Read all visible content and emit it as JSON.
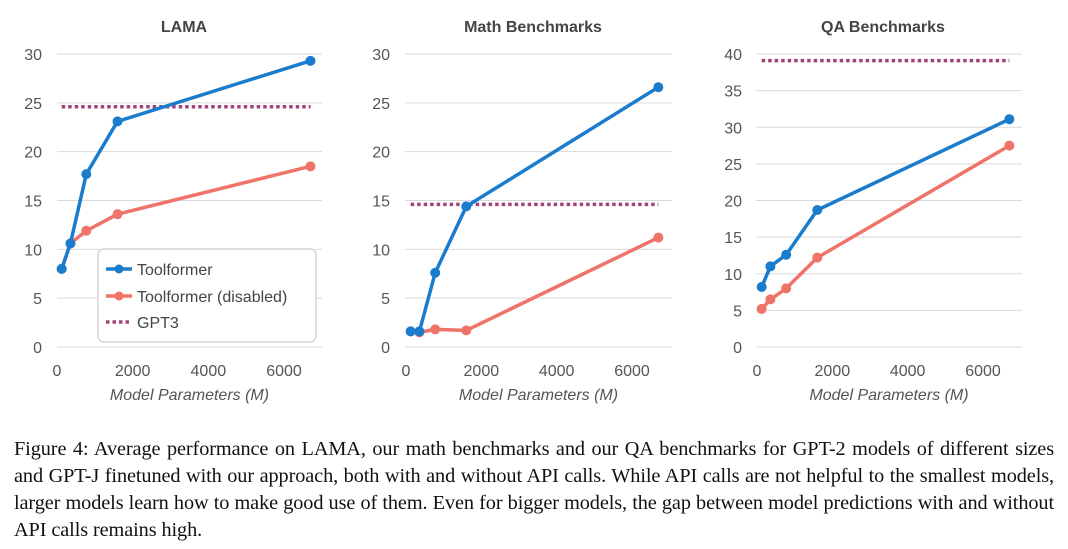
{
  "chart_data": [
    {
      "type": "line",
      "title": "LAMA",
      "xlabel": "Model Parameters (M)",
      "ylabel": "",
      "xlim": [
        0,
        7000
      ],
      "ylim": [
        0,
        30
      ],
      "xticks": [
        0,
        2000,
        4000,
        6000
      ],
      "yticks": [
        0,
        5,
        10,
        15,
        20,
        25,
        30
      ],
      "grid": true,
      "legend": "bottom-right",
      "x": [
        124,
        355,
        775,
        1600,
        6700
      ],
      "series": [
        {
          "name": "Toolformer",
          "color": "#1a7ccc",
          "values": [
            8.0,
            10.6,
            17.7,
            23.1,
            29.3
          ],
          "style": "solid-markers"
        },
        {
          "name": "Toolformer (disabled)",
          "color": "#ef7368",
          "values": [
            8.0,
            10.6,
            11.9,
            13.6,
            18.5
          ],
          "style": "solid-markers"
        },
        {
          "name": "GPT3",
          "color": "#a2427c",
          "constant": 24.6,
          "style": "dotted"
        }
      ]
    },
    {
      "type": "line",
      "title": "Math Benchmarks",
      "xlabel": "Model Parameters (M)",
      "ylabel": "",
      "xlim": [
        0,
        7000
      ],
      "ylim": [
        0,
        30
      ],
      "xticks": [
        0,
        2000,
        4000,
        6000
      ],
      "yticks": [
        0,
        5,
        10,
        15,
        20,
        25,
        30
      ],
      "grid": true,
      "legend": "none",
      "x": [
        124,
        355,
        775,
        1600,
        6700
      ],
      "series": [
        {
          "name": "Toolformer",
          "color": "#1a7ccc",
          "values": [
            1.6,
            1.6,
            7.6,
            14.4,
            26.6
          ],
          "style": "solid-markers"
        },
        {
          "name": "Toolformer (disabled)",
          "color": "#ef7368",
          "values": [
            1.6,
            1.5,
            1.8,
            1.7,
            11.2
          ],
          "style": "solid-markers"
        },
        {
          "name": "GPT3",
          "color": "#a2427c",
          "constant": 14.6,
          "style": "dotted"
        }
      ]
    },
    {
      "type": "line",
      "title": "QA Benchmarks",
      "xlabel": "Model Parameters (M)",
      "ylabel": "",
      "xlim": [
        0,
        7000
      ],
      "ylim": [
        0,
        40
      ],
      "xticks": [
        0,
        2000,
        4000,
        6000
      ],
      "yticks": [
        0,
        5,
        10,
        15,
        20,
        25,
        30,
        35,
        40
      ],
      "grid": true,
      "legend": "none",
      "x": [
        124,
        355,
        775,
        1600,
        6700
      ],
      "series": [
        {
          "name": "Toolformer",
          "color": "#1a7ccc",
          "values": [
            8.2,
            11.0,
            12.6,
            18.7,
            31.1
          ],
          "style": "solid-markers"
        },
        {
          "name": "Toolformer (disabled)",
          "color": "#ef7368",
          "values": [
            5.2,
            6.5,
            8.0,
            12.2,
            27.5
          ],
          "style": "solid-markers"
        },
        {
          "name": "GPT3",
          "color": "#a2427c",
          "constant": 39.1,
          "style": "dotted"
        }
      ]
    }
  ],
  "caption": "Figure 4: Average performance on LAMA, our math benchmarks and our QA benchmarks for GPT-2 models of different sizes and GPT-J finetuned with our approach, both with and without API calls. While API calls are not helpful to the smallest models, larger models learn how to make good use of them. Even for bigger models, the gap between model predictions with and without API calls remains high."
}
